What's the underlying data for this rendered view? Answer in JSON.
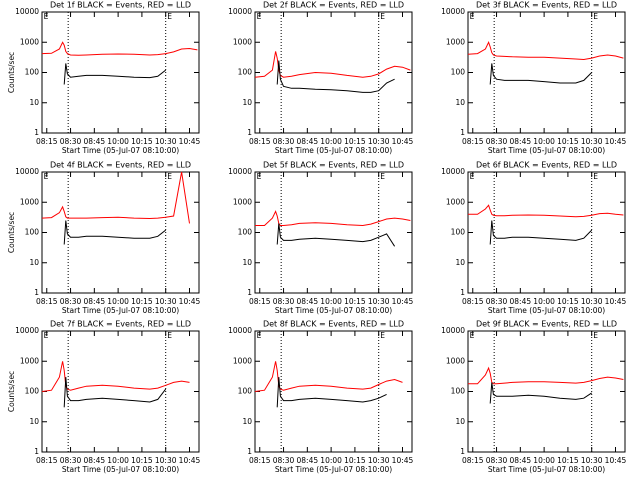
{
  "chart_data": [
    {
      "type": "line",
      "title": "Det 1f BLACK = Events, RED = LLD",
      "xlabel": "Start Time (05-Jul-07 08:10:00)",
      "ylabel": "Counts/sec",
      "log_y": true,
      "x": [
        2,
        8,
        13,
        15,
        16,
        17,
        18,
        20,
        25,
        30,
        40,
        50,
        60,
        70,
        75,
        80,
        85,
        90,
        95,
        100
      ],
      "series": [
        {
          "color": "#ff0000",
          "values": [
            420,
            430,
            600,
            1000,
            800,
            500,
            420,
            380,
            370,
            380,
            400,
            410,
            400,
            380,
            390,
            420,
            480,
            600,
            620,
            560
          ]
        },
        {
          "color": "#000000",
          "values": [
            null,
            null,
            null,
            null,
            40,
            200,
            90,
            70,
            75,
            80,
            80,
            75,
            70,
            68,
            75,
            120,
            null,
            null,
            null,
            null
          ]
        }
      ],
      "xlim": [
        2,
        101
      ],
      "ylim": [
        1,
        10000
      ],
      "xticks": [
        {
          "value": 5,
          "label": "08:15"
        },
        {
          "value": 20,
          "label": "08:30"
        },
        {
          "value": 35,
          "label": "08:45"
        },
        {
          "value": 50,
          "label": "10:00"
        },
        {
          "value": 65,
          "label": "10:15"
        },
        {
          "value": 80,
          "label": "10:30"
        },
        {
          "value": 95,
          "label": "10:45"
        }
      ],
      "yticks": [
        1,
        10,
        100,
        1000,
        10000
      ],
      "vlines": [
        18.5,
        80
      ],
      "annotations": [
        {
          "x": 3,
          "text": "E"
        },
        {
          "x": 81,
          "text": "E"
        }
      ]
    },
    {
      "type": "line",
      "title": "Det 2f BLACK = Events, RED = LLD",
      "xlabel": "Start Time (05-Jul-07 08:10:00)",
      "log_y": true,
      "x": [
        2,
        8,
        13,
        15,
        16,
        17,
        18,
        20,
        25,
        30,
        40,
        50,
        60,
        70,
        75,
        80,
        85,
        90,
        95,
        100
      ],
      "series": [
        {
          "color": "#ff0000",
          "values": [
            70,
            75,
            120,
            500,
            300,
            120,
            80,
            70,
            75,
            85,
            100,
            95,
            80,
            70,
            75,
            90,
            130,
            160,
            150,
            120
          ]
        },
        {
          "color": "#000000",
          "values": [
            null,
            null,
            null,
            null,
            40,
            250,
            60,
            35,
            30,
            30,
            28,
            27,
            25,
            22,
            22,
            25,
            45,
            60,
            null,
            null
          ]
        }
      ],
      "xlim": [
        2,
        101
      ],
      "ylim": [
        1,
        10000
      ],
      "xticks": [
        {
          "value": 5,
          "label": "08:15"
        },
        {
          "value": 20,
          "label": "08:30"
        },
        {
          "value": 35,
          "label": "08:45"
        },
        {
          "value": 50,
          "label": "10:00"
        },
        {
          "value": 65,
          "label": "10:15"
        },
        {
          "value": 80,
          "label": "10:30"
        },
        {
          "value": 95,
          "label": "10:45"
        }
      ],
      "yticks": [
        1,
        10,
        100,
        1000,
        10000
      ],
      "vlines": [
        18.5,
        80
      ],
      "annotations": [
        {
          "x": 3,
          "text": "E"
        },
        {
          "x": 81,
          "text": "E"
        }
      ]
    },
    {
      "type": "line",
      "title": "Det 3f BLACK = Events, RED = LLD",
      "xlabel": "Start Time (05-Jul-07 08:10:00)",
      "log_y": true,
      "x": [
        2,
        8,
        13,
        15,
        16,
        17,
        18,
        20,
        25,
        30,
        40,
        50,
        60,
        70,
        75,
        80,
        85,
        90,
        95,
        100
      ],
      "series": [
        {
          "color": "#ff0000",
          "values": [
            400,
            420,
            600,
            1000,
            700,
            450,
            380,
            350,
            340,
            330,
            320,
            320,
            300,
            280,
            270,
            300,
            350,
            380,
            350,
            300
          ]
        },
        {
          "color": "#000000",
          "values": [
            null,
            null,
            null,
            null,
            40,
            200,
            80,
            60,
            55,
            55,
            55,
            50,
            45,
            45,
            55,
            100,
            null,
            null,
            null,
            null
          ]
        }
      ],
      "xlim": [
        2,
        101
      ],
      "ylim": [
        1,
        10000
      ],
      "xticks": [
        {
          "value": 5,
          "label": "08:15"
        },
        {
          "value": 20,
          "label": "08:30"
        },
        {
          "value": 35,
          "label": "08:45"
        },
        {
          "value": 50,
          "label": "10:00"
        },
        {
          "value": 65,
          "label": "10:15"
        },
        {
          "value": 80,
          "label": "10:30"
        },
        {
          "value": 95,
          "label": "10:45"
        }
      ],
      "yticks": [
        1,
        10,
        100,
        1000,
        10000
      ],
      "vlines": [
        18.5,
        80
      ],
      "annotations": [
        {
          "x": 3,
          "text": "E"
        },
        {
          "x": 81,
          "text": "E"
        }
      ]
    },
    {
      "type": "line",
      "title": "Det 4f BLACK = Events, RED = LLD",
      "xlabel": "Start Time (05-Jul-07 08:10:00)",
      "ylabel": "Counts/sec",
      "log_y": true,
      "x": [
        2,
        8,
        13,
        15,
        16,
        17,
        18,
        20,
        25,
        30,
        40,
        50,
        60,
        70,
        75,
        80,
        85,
        90,
        95,
        100
      ],
      "series": [
        {
          "color": "#ff0000",
          "values": [
            300,
            310,
            450,
            700,
            500,
            330,
            300,
            300,
            300,
            300,
            310,
            320,
            300,
            290,
            300,
            320,
            350,
            10000,
            200,
            null
          ]
        },
        {
          "color": "#000000",
          "values": [
            null,
            null,
            null,
            null,
            40,
            250,
            90,
            70,
            70,
            75,
            75,
            70,
            65,
            65,
            75,
            120,
            null,
            null,
            null,
            null
          ]
        }
      ],
      "xlim": [
        2,
        101
      ],
      "ylim": [
        1,
        10000
      ],
      "xticks": [
        {
          "value": 5,
          "label": "08:15"
        },
        {
          "value": 20,
          "label": "08:30"
        },
        {
          "value": 35,
          "label": "08:45"
        },
        {
          "value": 50,
          "label": "10:00"
        },
        {
          "value": 65,
          "label": "10:15"
        },
        {
          "value": 80,
          "label": "10:30"
        },
        {
          "value": 95,
          "label": "10:45"
        }
      ],
      "yticks": [
        1,
        10,
        100,
        1000,
        10000
      ],
      "vlines": [
        18.5,
        80
      ],
      "annotations": [
        {
          "x": 3,
          "text": "E"
        },
        {
          "x": 81,
          "text": "E"
        }
      ]
    },
    {
      "type": "line",
      "title": "Det 5f BLACK = Events, RED = LLD",
      "xlabel": "Start Time (05-Jul-07 08:10:00)",
      "log_y": true,
      "x": [
        2,
        8,
        13,
        15,
        16,
        17,
        18,
        20,
        25,
        30,
        40,
        50,
        60,
        70,
        75,
        80,
        85,
        90,
        95,
        100
      ],
      "series": [
        {
          "color": "#ff0000",
          "values": [
            170,
            170,
            300,
            500,
            350,
            200,
            170,
            170,
            180,
            200,
            210,
            200,
            180,
            170,
            190,
            230,
            280,
            300,
            280,
            250
          ]
        },
        {
          "color": "#000000",
          "values": [
            null,
            null,
            null,
            null,
            40,
            200,
            70,
            55,
            55,
            60,
            65,
            60,
            55,
            50,
            55,
            70,
            90,
            35,
            null,
            null
          ]
        }
      ],
      "xlim": [
        2,
        101
      ],
      "ylim": [
        1,
        10000
      ],
      "xticks": [
        {
          "value": 5,
          "label": "08:15"
        },
        {
          "value": 20,
          "label": "08:30"
        },
        {
          "value": 35,
          "label": "08:45"
        },
        {
          "value": 50,
          "label": "10:00"
        },
        {
          "value": 65,
          "label": "10:15"
        },
        {
          "value": 80,
          "label": "10:30"
        },
        {
          "value": 95,
          "label": "10:45"
        }
      ],
      "yticks": [
        1,
        10,
        100,
        1000,
        10000
      ],
      "vlines": [
        18.5,
        80
      ],
      "annotations": [
        {
          "x": 3,
          "text": "E"
        },
        {
          "x": 81,
          "text": "E"
        }
      ]
    },
    {
      "type": "line",
      "title": "Det 6f BLACK = Events, RED = LLD",
      "xlabel": "Start Time (05-Jul-07 08:10:00)",
      "log_y": true,
      "x": [
        2,
        8,
        13,
        15,
        16,
        17,
        18,
        20,
        25,
        30,
        40,
        50,
        60,
        70,
        75,
        80,
        85,
        90,
        95,
        100
      ],
      "series": [
        {
          "color": "#ff0000",
          "values": [
            400,
            400,
            600,
            800,
            550,
            400,
            370,
            360,
            360,
            370,
            380,
            370,
            350,
            330,
            340,
            370,
            420,
            430,
            400,
            380
          ]
        },
        {
          "color": "#000000",
          "values": [
            null,
            null,
            null,
            null,
            40,
            250,
            80,
            65,
            65,
            70,
            70,
            65,
            60,
            55,
            65,
            120,
            null,
            null,
            null,
            null
          ]
        }
      ],
      "xlim": [
        2,
        101
      ],
      "ylim": [
        1,
        10000
      ],
      "xticks": [
        {
          "value": 5,
          "label": "08:15"
        },
        {
          "value": 20,
          "label": "08:30"
        },
        {
          "value": 35,
          "label": "08:45"
        },
        {
          "value": 50,
          "label": "10:00"
        },
        {
          "value": 65,
          "label": "10:15"
        },
        {
          "value": 80,
          "label": "10:30"
        },
        {
          "value": 95,
          "label": "10:45"
        }
      ],
      "yticks": [
        1,
        10,
        100,
        1000,
        10000
      ],
      "vlines": [
        18.5,
        80
      ],
      "annotations": [
        {
          "x": 3,
          "text": "E"
        },
        {
          "x": 81,
          "text": "E"
        }
      ]
    },
    {
      "type": "line",
      "title": "Det 7f BLACK = Events, RED = LLD",
      "xlabel": "Start Time (05-Jul-07 08:10:00)",
      "ylabel": "Counts/sec",
      "log_y": true,
      "x": [
        2,
        8,
        13,
        15,
        16,
        17,
        18,
        20,
        25,
        30,
        40,
        50,
        60,
        70,
        75,
        80,
        85,
        90,
        95,
        100
      ],
      "series": [
        {
          "color": "#ff0000",
          "values": [
            100,
            110,
            300,
            1000,
            500,
            150,
            120,
            110,
            130,
            150,
            160,
            150,
            130,
            120,
            130,
            160,
            200,
            220,
            200,
            null
          ]
        },
        {
          "color": "#000000",
          "values": [
            null,
            null,
            null,
            null,
            30,
            300,
            70,
            50,
            50,
            55,
            60,
            55,
            50,
            45,
            55,
            120,
            null,
            null,
            null,
            null
          ]
        }
      ],
      "xlim": [
        2,
        101
      ],
      "ylim": [
        1,
        10000
      ],
      "xticks": [
        {
          "value": 5,
          "label": "08:15"
        },
        {
          "value": 20,
          "label": "08:30"
        },
        {
          "value": 35,
          "label": "08:45"
        },
        {
          "value": 50,
          "label": "10:00"
        },
        {
          "value": 65,
          "label": "10:15"
        },
        {
          "value": 80,
          "label": "10:30"
        },
        {
          "value": 95,
          "label": "10:45"
        }
      ],
      "yticks": [
        1,
        10,
        100,
        1000,
        10000
      ],
      "vlines": [
        18.5,
        80
      ],
      "annotations": [
        {
          "x": 3,
          "text": "E"
        },
        {
          "x": 81,
          "text": "E"
        }
      ]
    },
    {
      "type": "line",
      "title": "Det 8f BLACK = Events, RED = LLD",
      "xlabel": "Start Time (05-Jul-07 08:10:00)",
      "log_y": true,
      "x": [
        2,
        8,
        13,
        15,
        16,
        17,
        18,
        20,
        25,
        30,
        40,
        50,
        60,
        70,
        75,
        80,
        85,
        90,
        95,
        100
      ],
      "series": [
        {
          "color": "#ff0000",
          "values": [
            100,
            110,
            300,
            1000,
            500,
            150,
            120,
            110,
            130,
            150,
            160,
            150,
            130,
            120,
            130,
            170,
            220,
            250,
            200,
            null
          ]
        },
        {
          "color": "#000000",
          "values": [
            null,
            null,
            null,
            null,
            30,
            300,
            70,
            50,
            50,
            55,
            60,
            55,
            50,
            45,
            50,
            60,
            80,
            null,
            null,
            null
          ]
        }
      ],
      "xlim": [
        2,
        101
      ],
      "ylim": [
        1,
        10000
      ],
      "xticks": [
        {
          "value": 5,
          "label": "08:15"
        },
        {
          "value": 20,
          "label": "08:30"
        },
        {
          "value": 35,
          "label": "08:45"
        },
        {
          "value": 50,
          "label": "10:00"
        },
        {
          "value": 65,
          "label": "10:15"
        },
        {
          "value": 80,
          "label": "10:30"
        },
        {
          "value": 95,
          "label": "10:45"
        }
      ],
      "yticks": [
        1,
        10,
        100,
        1000,
        10000
      ],
      "vlines": [
        18.5,
        80
      ],
      "annotations": [
        {
          "x": 3,
          "text": "E"
        },
        {
          "x": 81,
          "text": "E"
        }
      ]
    },
    {
      "type": "line",
      "title": "Det 9f BLACK = Events, RED = LLD",
      "xlabel": "Start Time (05-Jul-07 08:10:00)",
      "log_y": true,
      "x": [
        2,
        8,
        13,
        15,
        16,
        17,
        18,
        20,
        25,
        30,
        40,
        50,
        60,
        70,
        75,
        80,
        85,
        90,
        95,
        100
      ],
      "series": [
        {
          "color": "#ff0000",
          "values": [
            180,
            180,
            350,
            600,
            400,
            200,
            180,
            180,
            190,
            200,
            210,
            210,
            200,
            190,
            200,
            230,
            270,
            300,
            280,
            250
          ]
        },
        {
          "color": "#000000",
          "values": [
            null,
            null,
            null,
            null,
            40,
            200,
            80,
            70,
            70,
            70,
            75,
            70,
            60,
            55,
            60,
            90,
            null,
            null,
            null,
            null
          ]
        }
      ],
      "xlim": [
        2,
        101
      ],
      "ylim": [
        1,
        10000
      ],
      "xticks": [
        {
          "value": 5,
          "label": "08:15"
        },
        {
          "value": 20,
          "label": "08:30"
        },
        {
          "value": 35,
          "label": "08:45"
        },
        {
          "value": 50,
          "label": "10:00"
        },
        {
          "value": 65,
          "label": "10:15"
        },
        {
          "value": 80,
          "label": "10:30"
        },
        {
          "value": 95,
          "label": "10:45"
        }
      ],
      "yticks": [
        1,
        10,
        100,
        1000,
        10000
      ],
      "vlines": [
        18.5,
        80
      ],
      "annotations": [
        {
          "x": 3,
          "text": "E"
        },
        {
          "x": 81,
          "text": "E"
        }
      ]
    }
  ]
}
